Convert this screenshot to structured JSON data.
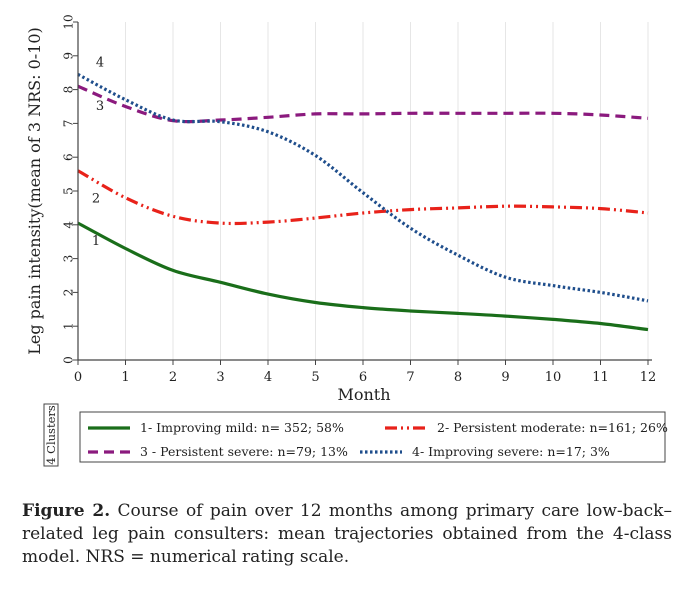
{
  "chart_data": {
    "type": "line",
    "xlabel": "Month",
    "ylabel": "Leg pain intensity(mean of 3 NRS: 0-10)",
    "x": [
      0,
      1,
      2,
      3,
      4,
      5,
      6,
      7,
      8,
      9,
      10,
      11,
      12
    ],
    "xlim": [
      0,
      12
    ],
    "ylim": [
      0,
      10
    ],
    "x_ticks": [
      "0",
      "1",
      "2",
      "3",
      "4",
      "5",
      "6",
      "7",
      "8",
      "9",
      "10",
      "11",
      "12"
    ],
    "y_ticks": [
      "0",
      "1",
      "2",
      "3",
      "4",
      "5",
      "6",
      "7",
      "8",
      "9",
      "10"
    ],
    "grid": "vertical",
    "legend_title": "4 Clusters",
    "legend_position": "bottom",
    "series": [
      {
        "name": "1- Improving mild: n= 352; 58%",
        "label": "1",
        "values": [
          4.05,
          3.3,
          2.65,
          2.3,
          1.95,
          1.7,
          1.55,
          1.45,
          1.38,
          1.3,
          1.2,
          1.08,
          0.9
        ],
        "color": "#1a6e1a",
        "style": "solid"
      },
      {
        "name": "2- Persistent moderate: n=161; 26%",
        "label": "2",
        "values": [
          5.6,
          4.8,
          4.25,
          4.05,
          4.08,
          4.2,
          4.35,
          4.45,
          4.5,
          4.55,
          4.53,
          4.48,
          4.35
        ],
        "color": "#e8221a",
        "style": "dash-dot"
      },
      {
        "name": "3 - Persistent severe: n=79; 13%",
        "label": "3",
        "values": [
          8.1,
          7.5,
          7.08,
          7.1,
          7.18,
          7.28,
          7.28,
          7.3,
          7.3,
          7.3,
          7.3,
          7.25,
          7.15
        ],
        "color": "#8b1a7e",
        "style": "dashed"
      },
      {
        "name": "4- Improving severe: n=17; 3%",
        "label": "4",
        "values": [
          8.45,
          7.7,
          7.1,
          7.05,
          6.75,
          6.05,
          4.95,
          3.9,
          3.1,
          2.45,
          2.2,
          2.0,
          1.75
        ],
        "color": "#1f4e8c",
        "style": "dotted"
      }
    ]
  },
  "caption": {
    "label": "Figure 2.",
    "text": " Course of pain over 12 months among primary care low-back–related leg pain consulters: mean trajectories obtained from the 4-class model. NRS = numerical rating scale."
  }
}
